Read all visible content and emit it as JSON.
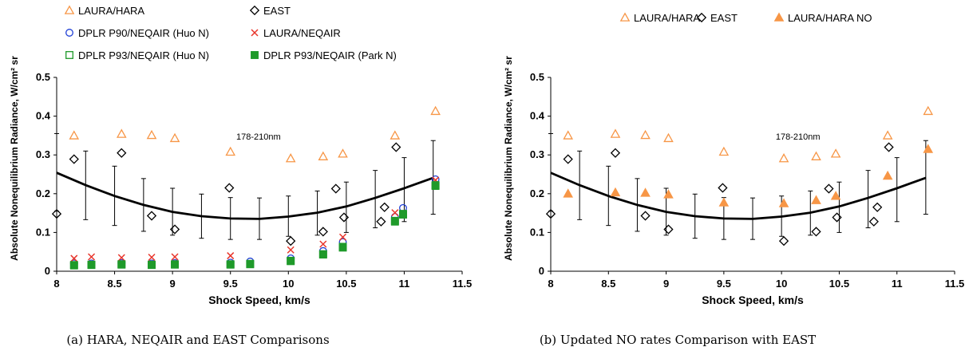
{
  "colors": {
    "hara": "#f79646",
    "east": "#000000",
    "dplr90": "#1f3fd6",
    "laura_neqair": "#e8352b",
    "dplr93": "#1f9a2a",
    "curve": "#000000"
  },
  "chart_data": [
    {
      "id": "a",
      "type": "scatter",
      "caption": "(a) HARA, NEQAIR and EAST Comparisons",
      "xlabel": "Shock Speed, km/s",
      "ylabel": "Absolute Nonequilibrium Radiance, W/cm² sr",
      "xlim": [
        8,
        11.5
      ],
      "ylim": [
        0,
        0.5
      ],
      "xticks": [
        "8",
        "8.5",
        "9",
        "9.5",
        "10",
        "10.5",
        "11",
        "11.5"
      ],
      "yticks": [
        "0",
        "0.1",
        "0.2",
        "0.3",
        "0.4",
        "0.5"
      ],
      "annotation": "178-210nm",
      "legend_rows": [
        [
          0,
          1
        ],
        [
          2,
          3
        ],
        [
          4,
          5
        ]
      ],
      "series": [
        {
          "name": "LAURA/HARA",
          "marker": "triangle-open",
          "color": "#f79646",
          "x": [
            8.15,
            8.56,
            8.82,
            9.02,
            9.5,
            10.02,
            10.3,
            10.47,
            10.92,
            11.27
          ],
          "y": [
            0.35,
            0.354,
            0.351,
            0.343,
            0.308,
            0.291,
            0.296,
            0.303,
            0.35,
            0.413
          ]
        },
        {
          "name": "EAST",
          "marker": "diamond-open",
          "color": "#000000",
          "x": [
            8.0,
            8.15,
            8.56,
            8.82,
            9.02,
            9.49,
            10.02,
            10.3,
            10.41,
            10.48,
            10.8,
            10.83,
            10.93
          ],
          "y": [
            0.148,
            0.289,
            0.305,
            0.143,
            0.108,
            0.215,
            0.078,
            0.102,
            0.213,
            0.139,
            0.128,
            0.165,
            0.32
          ]
        },
        {
          "name": "DPLR P90/NEQAIR (Huo N)",
          "marker": "circle-open",
          "color": "#1f3fd6",
          "x": [
            8.15,
            8.3,
            8.56,
            8.82,
            9.02,
            9.5,
            9.67,
            10.02,
            10.3,
            10.47,
            10.92,
            10.99,
            11.27
          ],
          "y": [
            0.02,
            0.02,
            0.021,
            0.02,
            0.021,
            0.022,
            0.025,
            0.033,
            0.052,
            0.075,
            0.14,
            0.163,
            0.237
          ]
        },
        {
          "name": "LAURA/NEQAIR",
          "marker": "x",
          "color": "#e8352b",
          "x": [
            8.15,
            8.3,
            8.56,
            8.82,
            9.02,
            9.5,
            10.02,
            10.3,
            10.47,
            10.92,
            11.27
          ],
          "y": [
            0.033,
            0.037,
            0.035,
            0.036,
            0.037,
            0.04,
            0.055,
            0.07,
            0.088,
            0.151,
            0.235
          ]
        },
        {
          "name": "DPLR P93/NEQAIR (Huo N)",
          "marker": "square-open",
          "color": "#1f9a2a",
          "x": [
            8.15,
            8.3,
            8.56,
            8.82,
            9.02,
            9.5,
            9.67,
            10.02,
            10.3,
            10.47,
            10.92,
            10.99,
            11.27
          ],
          "y": [
            0.016,
            0.017,
            0.018,
            0.017,
            0.018,
            0.018,
            0.019,
            0.027,
            0.044,
            0.063,
            0.13,
            0.148,
            0.222
          ]
        },
        {
          "name": "DPLR P93/NEQAIR (Park N)",
          "marker": "square-filled",
          "color": "#1f9a2a",
          "x": [
            8.15,
            8.3,
            8.56,
            8.82,
            9.02,
            9.5,
            9.67,
            10.02,
            10.3,
            10.47,
            10.92,
            10.99,
            11.27
          ],
          "y": [
            0.015,
            0.016,
            0.017,
            0.016,
            0.017,
            0.017,
            0.018,
            0.026,
            0.043,
            0.061,
            0.128,
            0.146,
            0.22
          ]
        }
      ],
      "errorbars": {
        "x": [
          8.0,
          8.25,
          8.5,
          8.75,
          9.0,
          9.25,
          9.5,
          9.75,
          10.0,
          10.25,
          10.5,
          10.75,
          11.0,
          11.25
        ],
        "low": [
          0.155,
          0.133,
          0.118,
          0.103,
          0.093,
          0.085,
          0.082,
          0.082,
          0.09,
          0.093,
          0.1,
          0.112,
          0.128,
          0.147
        ],
        "high": [
          0.355,
          0.31,
          0.271,
          0.239,
          0.214,
          0.199,
          0.19,
          0.189,
          0.194,
          0.207,
          0.23,
          0.26,
          0.293,
          0.337
        ]
      },
      "curve": {
        "x": [
          8.0,
          8.25,
          8.5,
          8.75,
          9.0,
          9.25,
          9.5,
          9.75,
          10.0,
          10.25,
          10.5,
          10.75,
          11.0,
          11.25
        ],
        "y": [
          0.254,
          0.222,
          0.194,
          0.171,
          0.153,
          0.142,
          0.136,
          0.135,
          0.141,
          0.151,
          0.167,
          0.189,
          0.214,
          0.241
        ]
      }
    },
    {
      "id": "b",
      "type": "scatter",
      "caption": "(b) Updated NO rates Comparison with EAST",
      "xlabel": "Shock Speed, km/s",
      "ylabel": "Absolute Nonequilibrium Radiance, W/cm² sr",
      "xlim": [
        8,
        11.5
      ],
      "ylim": [
        0,
        0.5
      ],
      "xticks": [
        "8",
        "8.5",
        "9",
        "9.5",
        "10",
        "10.5",
        "11",
        "11.5"
      ],
      "yticks": [
        "0",
        "0.1",
        "0.2",
        "0.3",
        "0.4",
        "0.5"
      ],
      "annotation": "178-210nm",
      "legend_rows": [
        [
          0,
          1,
          2
        ]
      ],
      "series": [
        {
          "name": "LAURA/HARA",
          "marker": "triangle-open",
          "color": "#f79646",
          "x": [
            8.15,
            8.56,
            8.82,
            9.02,
            9.5,
            10.02,
            10.3,
            10.47,
            10.92,
            11.27
          ],
          "y": [
            0.35,
            0.354,
            0.351,
            0.343,
            0.308,
            0.291,
            0.296,
            0.303,
            0.35,
            0.413
          ]
        },
        {
          "name": "EAST",
          "marker": "diamond-open",
          "color": "#000000",
          "x": [
            8.0,
            8.15,
            8.56,
            8.82,
            9.02,
            9.49,
            10.02,
            10.3,
            10.41,
            10.48,
            10.8,
            10.83,
            10.93
          ],
          "y": [
            0.148,
            0.289,
            0.305,
            0.143,
            0.108,
            0.215,
            0.078,
            0.102,
            0.213,
            0.139,
            0.128,
            0.165,
            0.32
          ]
        },
        {
          "name": "LAURA/HARA NO",
          "marker": "triangle-filled",
          "color": "#f79646",
          "x": [
            8.15,
            8.56,
            8.82,
            9.02,
            9.5,
            10.02,
            10.3,
            10.47,
            10.92,
            11.27
          ],
          "y": [
            0.2,
            0.203,
            0.202,
            0.198,
            0.177,
            0.175,
            0.183,
            0.194,
            0.246,
            0.315
          ]
        }
      ],
      "errorbars": {
        "x": [
          8.0,
          8.25,
          8.5,
          8.75,
          9.0,
          9.25,
          9.5,
          9.75,
          10.0,
          10.25,
          10.5,
          10.75,
          11.0,
          11.25
        ],
        "low": [
          0.155,
          0.133,
          0.118,
          0.103,
          0.093,
          0.085,
          0.082,
          0.082,
          0.09,
          0.093,
          0.1,
          0.112,
          0.128,
          0.147
        ],
        "high": [
          0.355,
          0.31,
          0.271,
          0.239,
          0.214,
          0.199,
          0.19,
          0.189,
          0.194,
          0.207,
          0.23,
          0.26,
          0.293,
          0.337
        ]
      },
      "curve": {
        "x": [
          8.0,
          8.25,
          8.5,
          8.75,
          9.0,
          9.25,
          9.5,
          9.75,
          10.0,
          10.25,
          10.5,
          10.75,
          11.0,
          11.25
        ],
        "y": [
          0.254,
          0.222,
          0.194,
          0.171,
          0.153,
          0.142,
          0.136,
          0.135,
          0.141,
          0.151,
          0.167,
          0.189,
          0.214,
          0.241
        ]
      }
    }
  ]
}
